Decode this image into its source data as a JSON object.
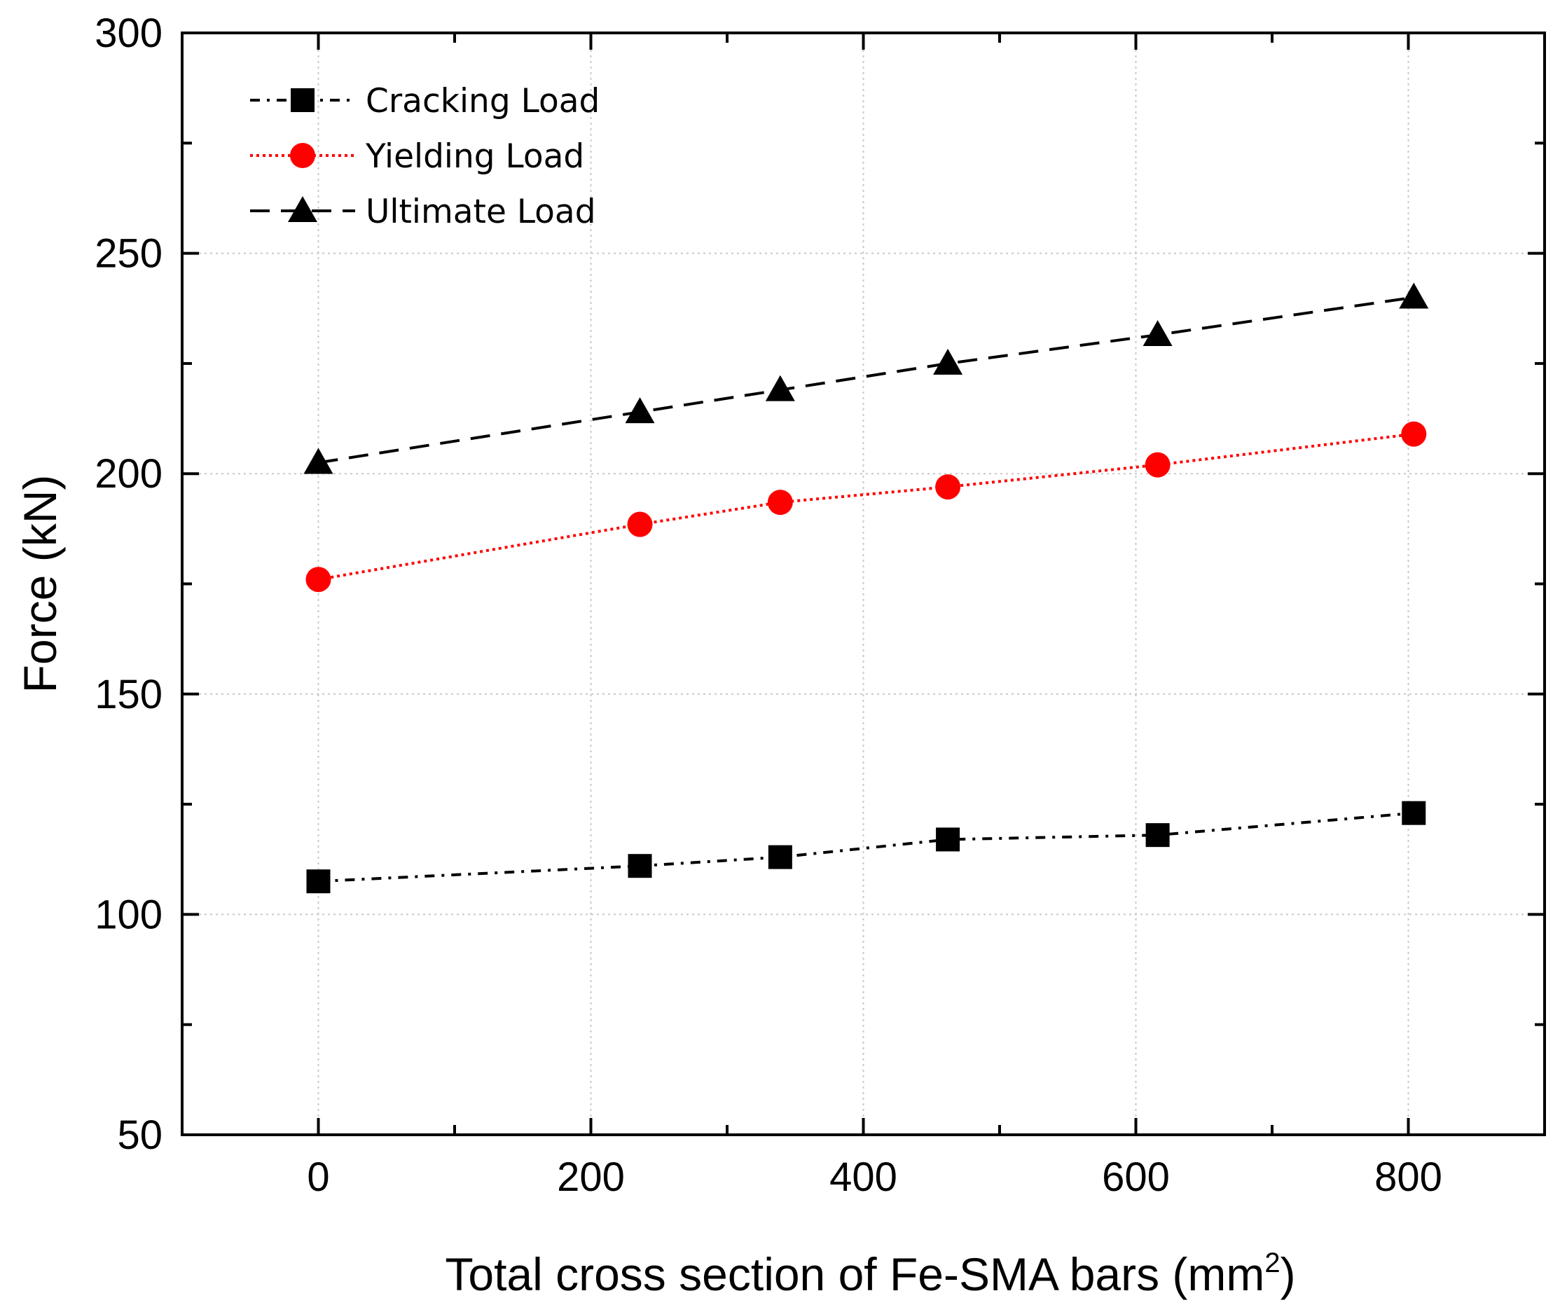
{
  "chart_data": {
    "type": "line",
    "title": "",
    "xlabel": "Total cross section of Fe-SMA bars (mm",
    "xlabel_superscript": "2",
    "xlabel_suffix": ")",
    "ylabel": "Force (kN)",
    "xlim": [
      -100,
      900
    ],
    "ylim": [
      50,
      300
    ],
    "x_ticks": [
      0,
      200,
      400,
      600,
      800
    ],
    "y_ticks": [
      50,
      100,
      150,
      200,
      250,
      300
    ],
    "x_minor_ticks": [
      -100,
      100,
      300,
      500,
      700,
      900
    ],
    "y_minor_ticks": [
      75,
      125,
      175,
      225,
      275
    ],
    "grid": true,
    "legend_position": "top-left",
    "x": [
      0,
      236,
      339,
      462,
      616,
      804
    ],
    "series": [
      {
        "name": "Cracking Load",
        "values": [
          107.5,
          111,
          113,
          117,
          118,
          123
        ],
        "color": "#000000",
        "marker": "square",
        "line_style": "dash-dot"
      },
      {
        "name": "Yielding Load",
        "values": [
          176,
          188.5,
          193.5,
          197,
          202,
          209
        ],
        "color": "#ff0000",
        "marker": "circle",
        "line_style": "dotted"
      },
      {
        "name": "Ultimate Load",
        "values": [
          202.5,
          214,
          219,
          225,
          231.5,
          240
        ],
        "color": "#000000",
        "marker": "triangle",
        "line_style": "dashed"
      }
    ]
  }
}
